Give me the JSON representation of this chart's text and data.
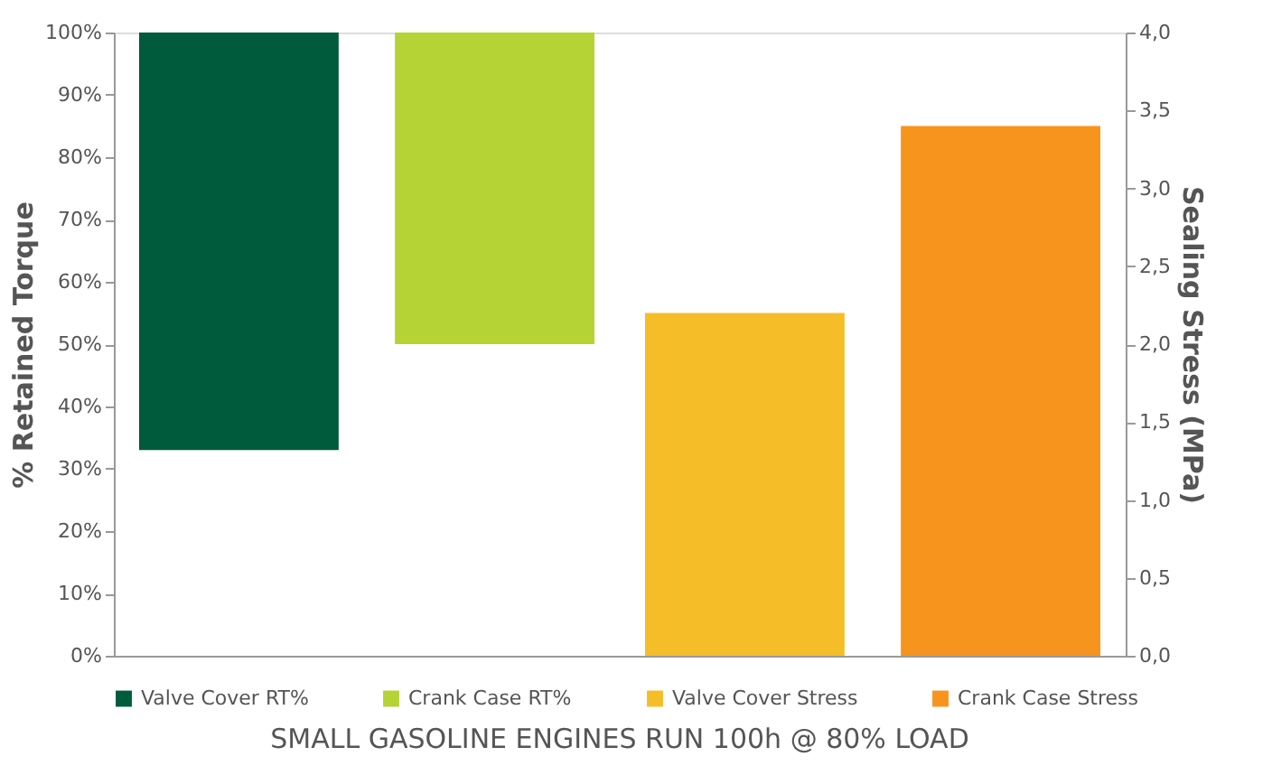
{
  "chart_data": {
    "type": "bar",
    "xlabel": "SMALL GASOLINE ENGINES RUN 100h @ 80% LOAD",
    "ylabel": "% Retained Torque",
    "y2label": "Sealing Stress (MPa)",
    "categories": [
      null,
      null
    ],
    "series": [
      {
        "name": "Valve Cover RT%",
        "color": "#005a3c",
        "values": [
          67,
          null
        ],
        "base": [
          33,
          null
        ]
      },
      {
        "name": "Crank Case RT%",
        "color": "#b5d334",
        "values": [
          50,
          null
        ],
        "base": [
          50,
          null
        ]
      },
      {
        "name": "Valve Cover Stress",
        "color": "#f5be28",
        "values": [
          null,
          2.2
        ],
        "axis": "y2"
      },
      {
        "name": "Crank Case Stress",
        "color": "#f7941d",
        "values": [
          null,
          3.4
        ],
        "axis": "y2"
      }
    ],
    "ylim": [
      0,
      100
    ],
    "yticks": [
      {
        "value": 0,
        "label": "0%"
      },
      {
        "value": 10,
        "label": "10%"
      },
      {
        "value": 20,
        "label": "20%"
      },
      {
        "value": 30,
        "label": "30%"
      },
      {
        "value": 40,
        "label": "40%"
      },
      {
        "value": 50,
        "label": "50%"
      },
      {
        "value": 60,
        "label": "60%"
      },
      {
        "value": 70,
        "label": "70%"
      },
      {
        "value": 80,
        "label": "80%"
      },
      {
        "value": 90,
        "label": "90%"
      },
      {
        "value": 100,
        "label": "100%"
      }
    ],
    "y2lim": [
      0,
      4
    ],
    "y2ticks": [
      {
        "value": 0,
        "label": "0,0"
      },
      {
        "value": 0.5,
        "label": "0,5"
      },
      {
        "value": 1,
        "label": "1,0"
      },
      {
        "value": 1.5,
        "label": "1,5"
      },
      {
        "value": 2,
        "label": "2,0"
      },
      {
        "value": 2.5,
        "label": "2,5"
      },
      {
        "value": 3,
        "label": "3,0"
      },
      {
        "value": 3.5,
        "label": "3,5"
      },
      {
        "value": 4,
        "label": "4,0"
      }
    ],
    "tick_labels": "y",
    "grid": false,
    "legend": "bottom"
  }
}
